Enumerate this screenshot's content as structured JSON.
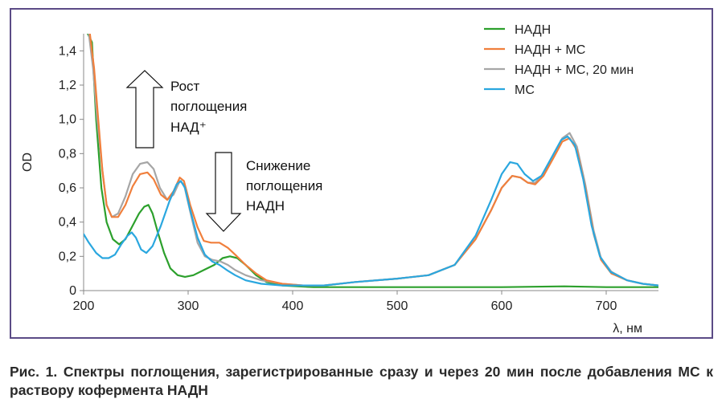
{
  "chart_data": {
    "type": "line",
    "xlabel": "λ, нм",
    "ylabel": "OD",
    "xlim": [
      200,
      750
    ],
    "ylim": [
      0,
      1.5
    ],
    "xticks": [
      200,
      300,
      400,
      500,
      600,
      700
    ],
    "yticks": [
      0,
      0.2,
      0.4,
      0.6,
      0.8,
      1.0,
      1.2,
      1.4
    ],
    "ytick_labels": [
      "0",
      "0,2",
      "0,4",
      "0,6",
      "0,8",
      "1,0",
      "1,2",
      "1,4"
    ],
    "grid": false,
    "legend_position": "top-right",
    "series": [
      {
        "name": "НАДН",
        "color": "#2ca02c",
        "points": [
          [
            204,
            1.5
          ],
          [
            208,
            1.45
          ],
          [
            212,
            1.0
          ],
          [
            217,
            0.6
          ],
          [
            222,
            0.4
          ],
          [
            228,
            0.3
          ],
          [
            234,
            0.27
          ],
          [
            240,
            0.3
          ],
          [
            247,
            0.38
          ],
          [
            253,
            0.45
          ],
          [
            258,
            0.49
          ],
          [
            262,
            0.5
          ],
          [
            266,
            0.45
          ],
          [
            271,
            0.34
          ],
          [
            277,
            0.22
          ],
          [
            283,
            0.13
          ],
          [
            290,
            0.09
          ],
          [
            297,
            0.08
          ],
          [
            305,
            0.09
          ],
          [
            315,
            0.12
          ],
          [
            325,
            0.15
          ],
          [
            333,
            0.19
          ],
          [
            340,
            0.2
          ],
          [
            347,
            0.19
          ],
          [
            355,
            0.15
          ],
          [
            365,
            0.09
          ],
          [
            375,
            0.05
          ],
          [
            390,
            0.03
          ],
          [
            420,
            0.02
          ],
          [
            500,
            0.02
          ],
          [
            600,
            0.02
          ],
          [
            660,
            0.025
          ],
          [
            700,
            0.02
          ],
          [
            750,
            0.02
          ]
        ]
      },
      {
        "name": "НАДН + МС",
        "color": "#f07f3c",
        "points": [
          [
            206,
            1.5
          ],
          [
            210,
            1.3
          ],
          [
            214,
            1.0
          ],
          [
            218,
            0.7
          ],
          [
            222,
            0.5
          ],
          [
            227,
            0.43
          ],
          [
            233,
            0.43
          ],
          [
            240,
            0.5
          ],
          [
            247,
            0.61
          ],
          [
            254,
            0.68
          ],
          [
            261,
            0.69
          ],
          [
            267,
            0.65
          ],
          [
            274,
            0.56
          ],
          [
            280,
            0.53
          ],
          [
            286,
            0.58
          ],
          [
            292,
            0.66
          ],
          [
            296,
            0.64
          ],
          [
            302,
            0.5
          ],
          [
            309,
            0.37
          ],
          [
            315,
            0.29
          ],
          [
            322,
            0.28
          ],
          [
            330,
            0.28
          ],
          [
            338,
            0.25
          ],
          [
            345,
            0.21
          ],
          [
            355,
            0.15
          ],
          [
            365,
            0.1
          ],
          [
            375,
            0.06
          ],
          [
            390,
            0.04
          ],
          [
            410,
            0.03
          ],
          [
            430,
            0.03
          ],
          [
            460,
            0.05
          ],
          [
            500,
            0.07
          ],
          [
            530,
            0.09
          ],
          [
            555,
            0.15
          ],
          [
            575,
            0.3
          ],
          [
            590,
            0.47
          ],
          [
            600,
            0.6
          ],
          [
            610,
            0.67
          ],
          [
            618,
            0.66
          ],
          [
            625,
            0.63
          ],
          [
            632,
            0.62
          ],
          [
            640,
            0.67
          ],
          [
            650,
            0.78
          ],
          [
            658,
            0.87
          ],
          [
            665,
            0.89
          ],
          [
            672,
            0.82
          ],
          [
            680,
            0.6
          ],
          [
            688,
            0.33
          ],
          [
            695,
            0.18
          ],
          [
            705,
            0.1
          ],
          [
            720,
            0.06
          ],
          [
            735,
            0.04
          ],
          [
            750,
            0.03
          ]
        ]
      },
      {
        "name": "НАДН + МС, 20 мин",
        "color": "#a6a6a6",
        "points": [
          [
            205,
            1.5
          ],
          [
            209,
            1.3
          ],
          [
            213,
            1.0
          ],
          [
            218,
            0.7
          ],
          [
            222,
            0.5
          ],
          [
            227,
            0.43
          ],
          [
            233,
            0.45
          ],
          [
            240,
            0.55
          ],
          [
            247,
            0.68
          ],
          [
            254,
            0.74
          ],
          [
            261,
            0.75
          ],
          [
            267,
            0.71
          ],
          [
            273,
            0.6
          ],
          [
            280,
            0.53
          ],
          [
            286,
            0.56
          ],
          [
            292,
            0.64
          ],
          [
            296,
            0.62
          ],
          [
            302,
            0.46
          ],
          [
            309,
            0.28
          ],
          [
            316,
            0.2
          ],
          [
            323,
            0.18
          ],
          [
            331,
            0.17
          ],
          [
            338,
            0.15
          ],
          [
            345,
            0.12
          ],
          [
            355,
            0.09
          ],
          [
            370,
            0.06
          ],
          [
            390,
            0.04
          ],
          [
            410,
            0.03
          ],
          [
            430,
            0.03
          ],
          [
            460,
            0.05
          ],
          [
            500,
            0.07
          ],
          [
            530,
            0.09
          ],
          [
            555,
            0.15
          ],
          [
            575,
            0.3
          ],
          [
            590,
            0.47
          ],
          [
            600,
            0.6
          ],
          [
            610,
            0.67
          ],
          [
            618,
            0.66
          ],
          [
            625,
            0.63
          ],
          [
            632,
            0.63
          ],
          [
            640,
            0.68
          ],
          [
            650,
            0.8
          ],
          [
            658,
            0.89
          ],
          [
            665,
            0.92
          ],
          [
            672,
            0.84
          ],
          [
            680,
            0.62
          ],
          [
            688,
            0.35
          ],
          [
            695,
            0.19
          ],
          [
            705,
            0.11
          ],
          [
            720,
            0.06
          ],
          [
            735,
            0.04
          ],
          [
            750,
            0.03
          ]
        ]
      },
      {
        "name": "МС",
        "color": "#2aa7df",
        "points": [
          [
            200,
            0.33
          ],
          [
            205,
            0.28
          ],
          [
            212,
            0.22
          ],
          [
            218,
            0.19
          ],
          [
            224,
            0.19
          ],
          [
            230,
            0.21
          ],
          [
            236,
            0.27
          ],
          [
            242,
            0.32
          ],
          [
            246,
            0.34
          ],
          [
            250,
            0.31
          ],
          [
            255,
            0.24
          ],
          [
            260,
            0.22
          ],
          [
            266,
            0.26
          ],
          [
            274,
            0.38
          ],
          [
            282,
            0.52
          ],
          [
            289,
            0.62
          ],
          [
            293,
            0.64
          ],
          [
            297,
            0.6
          ],
          [
            302,
            0.47
          ],
          [
            309,
            0.31
          ],
          [
            316,
            0.21
          ],
          [
            323,
            0.17
          ],
          [
            330,
            0.15
          ],
          [
            337,
            0.12
          ],
          [
            345,
            0.09
          ],
          [
            355,
            0.06
          ],
          [
            370,
            0.04
          ],
          [
            390,
            0.03
          ],
          [
            410,
            0.03
          ],
          [
            430,
            0.03
          ],
          [
            460,
            0.05
          ],
          [
            500,
            0.07
          ],
          [
            530,
            0.09
          ],
          [
            555,
            0.15
          ],
          [
            575,
            0.32
          ],
          [
            590,
            0.53
          ],
          [
            600,
            0.68
          ],
          [
            608,
            0.75
          ],
          [
            615,
            0.74
          ],
          [
            622,
            0.68
          ],
          [
            630,
            0.64
          ],
          [
            638,
            0.67
          ],
          [
            648,
            0.78
          ],
          [
            657,
            0.88
          ],
          [
            663,
            0.9
          ],
          [
            670,
            0.85
          ],
          [
            678,
            0.65
          ],
          [
            686,
            0.38
          ],
          [
            694,
            0.2
          ],
          [
            704,
            0.11
          ],
          [
            720,
            0.06
          ],
          [
            735,
            0.04
          ],
          [
            750,
            0.03
          ]
        ]
      }
    ],
    "annotations": [
      {
        "lines": [
          "Рост",
          "поглощения",
          "НАД⁺"
        ],
        "arrow": "up"
      },
      {
        "lines": [
          "Снижение",
          "поглощения",
          "НАДН"
        ],
        "arrow": "down"
      }
    ]
  },
  "caption": "Рис. 1. Спектры поглощения, зарегистрированные сразу и через 20 мин после добавления МС к раствору кофермента НАДН"
}
